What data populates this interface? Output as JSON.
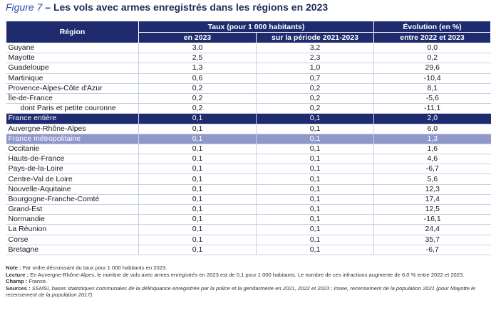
{
  "title": {
    "figure": "Figure 7",
    "dash": " – ",
    "text": "Les vols avec armes enregistrés dans les régions en 2023"
  },
  "table": {
    "header_region": "Région",
    "header_taux": "Taux (pour 1 000 habitants)",
    "header_taux_2023": "en 2023",
    "header_taux_period": "sur la période 2021-2023",
    "header_evol_line1": "Évolution (en %)",
    "header_evol_line2": "entre 2022 et 2023",
    "rows": [
      {
        "region": "Guyane",
        "taux2023": "3,0",
        "taux_periode": "3,2",
        "evolution": "0,0",
        "style": ""
      },
      {
        "region": "Mayotte",
        "taux2023": "2,5",
        "taux_periode": "2,3",
        "evolution": "0,2",
        "style": ""
      },
      {
        "region": "Guadeloupe",
        "taux2023": "1,3",
        "taux_periode": "1,0",
        "evolution": "29,6",
        "style": ""
      },
      {
        "region": "Martinique",
        "taux2023": "0,6",
        "taux_periode": "0,7",
        "evolution": "-10,4",
        "style": ""
      },
      {
        "region": "Provence-Alpes-Côte d'Azur",
        "taux2023": "0,2",
        "taux_periode": "0,2",
        "evolution": "8,1",
        "style": ""
      },
      {
        "region": "Île-de-France",
        "taux2023": "0,2",
        "taux_periode": "0,2",
        "evolution": "-5,6",
        "style": ""
      },
      {
        "region": "dont Paris et petite couronne",
        "taux2023": "0,2",
        "taux_periode": "0,2",
        "evolution": "-11,1",
        "style": "indent"
      },
      {
        "region": "France entière",
        "taux2023": "0,1",
        "taux_periode": "0,1",
        "evolution": "2,0",
        "style": "hl-dark"
      },
      {
        "region": "Auvergne-Rhône-Alpes",
        "taux2023": "0,1",
        "taux_periode": "0,1",
        "evolution": "6,0",
        "style": ""
      },
      {
        "region": "France métropolitaine",
        "taux2023": "0,1",
        "taux_periode": "0,1",
        "evolution": "1,3",
        "style": "hl-light"
      },
      {
        "region": "Occitanie",
        "taux2023": "0,1",
        "taux_periode": "0,1",
        "evolution": "1,6",
        "style": ""
      },
      {
        "region": "Hauts-de-France",
        "taux2023": "0,1",
        "taux_periode": "0,1",
        "evolution": "4,6",
        "style": ""
      },
      {
        "region": "Pays-de-la-Loire",
        "taux2023": "0,1",
        "taux_periode": "0,1",
        "evolution": "-6,7",
        "style": ""
      },
      {
        "region": "Centre-Val de Loire",
        "taux2023": "0,1",
        "taux_periode": "0,1",
        "evolution": "5,6",
        "style": ""
      },
      {
        "region": "Nouvelle-Aquitaine",
        "taux2023": "0,1",
        "taux_periode": "0,1",
        "evolution": "12,3",
        "style": ""
      },
      {
        "region": "Bourgogne-Franche-Comté",
        "taux2023": "0,1",
        "taux_periode": "0,1",
        "evolution": "17,4",
        "style": ""
      },
      {
        "region": "Grand-Est",
        "taux2023": "0,1",
        "taux_periode": "0,1",
        "evolution": "12,5",
        "style": ""
      },
      {
        "region": "Normandie",
        "taux2023": "0,1",
        "taux_periode": "0,1",
        "evolution": "-16,1",
        "style": ""
      },
      {
        "region": "La Réunion",
        "taux2023": "0,1",
        "taux_periode": "0,1",
        "evolution": "24,4",
        "style": ""
      },
      {
        "region": "Corse",
        "taux2023": "0,1",
        "taux_periode": "0,1",
        "evolution": "35,7",
        "style": ""
      },
      {
        "region": "Bretagne",
        "taux2023": "0,1",
        "taux_periode": "0,1",
        "evolution": "-6,7",
        "style": ""
      }
    ]
  },
  "notes": {
    "note_label": "Note :",
    "note_text": " Par ordre décroissant du taux pour 1 000 habitants en 2023.",
    "lecture_label": "Lecture :",
    "lecture_text": " En Auvergne-Rhône-Alpes, le nombre de vols avec armes enregistrés en 2023 est de 0,1 pour 1 000 habitants. Le nombre de ces infractions augmente de 6,0 % entre 2022 et 2023.",
    "champ_label": "Champ :",
    "champ_text": " France.",
    "sources_label": "Sources :",
    "sources_text": " SSMSI, bases statistiques communales de la délinquance enregistrée par la police et la gendarmerie en 2021, 2022 et 2023 ; Insee, recensement de la population 2021 (pour Mayotte le recensement de la population 2017)."
  },
  "colors": {
    "header_bg": "#1e2b6e",
    "highlight_dark": "#1e2b6e",
    "highlight_light": "#8f98c9",
    "title_color": "#1f2a56",
    "figure_label_color": "#2c4fa3"
  }
}
